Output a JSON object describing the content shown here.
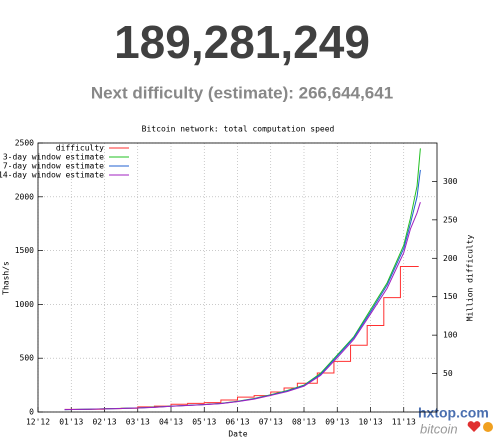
{
  "header": {
    "value": "189,281,249",
    "next": "Next difficulty (estimate): 266,644,641"
  },
  "chart_data": {
    "type": "line",
    "title": "Bitcoin network: total computation speed",
    "xlabel": "Date",
    "ylabel": "Thash/s",
    "y2label": "Million difficulty",
    "xlim": [
      0,
      12
    ],
    "xticks": [
      {
        "value": 0,
        "label": "12'12"
      },
      {
        "value": 1,
        "label": "01'13"
      },
      {
        "value": 2,
        "label": "02'13"
      },
      {
        "value": 3,
        "label": "03'13"
      },
      {
        "value": 4,
        "label": "04'13"
      },
      {
        "value": 5,
        "label": "05'13"
      },
      {
        "value": 6,
        "label": "06'13"
      },
      {
        "value": 7,
        "label": "07'13"
      },
      {
        "value": 8,
        "label": "08'13"
      },
      {
        "value": 9,
        "label": "09'13"
      },
      {
        "value": 10,
        "label": "10'13"
      },
      {
        "value": 11,
        "label": "11'13"
      }
    ],
    "ylim": [
      0,
      2500
    ],
    "yticks": [
      0,
      500,
      1000,
      1500,
      2000,
      2500
    ],
    "y2lim": [
      0,
      350
    ],
    "y2ticks": [
      50,
      100,
      150,
      200,
      250,
      300
    ],
    "grid": true,
    "legend": "top-left",
    "series": [
      {
        "name": "difficulty",
        "color": "#ff3030",
        "axis": "y2",
        "step": true,
        "x": [
          0.8,
          1.6,
          2.0,
          2.5,
          3.0,
          3.5,
          4.0,
          4.5,
          5.0,
          5.5,
          6.0,
          6.5,
          7.0,
          7.4,
          7.8,
          8.4,
          8.9,
          9.4,
          9.9,
          10.4,
          10.9,
          11.45
        ],
        "values": [
          3.4,
          3.6,
          4.4,
          4.9,
          6.7,
          7.7,
          10.1,
          11.2,
          12.2,
          15.6,
          19.3,
          21.3,
          26.0,
          31.3,
          37.4,
          50.8,
          65.8,
          86.9,
          112.6,
          148.8,
          189.3,
          189.3
        ]
      },
      {
        "name": "3-day window estimate",
        "color": "#20c020",
        "x": [
          0.8,
          1.5,
          2,
          2.5,
          3,
          3.5,
          4,
          4.5,
          5,
          5.5,
          6,
          6.5,
          7,
          7.5,
          8,
          8.5,
          9,
          9.5,
          10,
          10.5,
          11,
          11.2,
          11.4,
          11.5
        ],
        "values": [
          22,
          26,
          30,
          34,
          38,
          45,
          55,
          62,
          70,
          80,
          100,
          125,
          160,
          200,
          250,
          360,
          530,
          700,
          950,
          1200,
          1550,
          1800,
          2100,
          2450
        ]
      },
      {
        "name": "7-day window estimate",
        "color": "#2060d0",
        "x": [
          0.8,
          1.5,
          2,
          2.5,
          3,
          3.5,
          4,
          4.5,
          5,
          5.5,
          6,
          6.5,
          7,
          7.5,
          8,
          8.5,
          9,
          9.5,
          10,
          10.5,
          11,
          11.2,
          11.4,
          11.5
        ],
        "values": [
          22,
          25,
          29,
          33,
          37,
          44,
          54,
          61,
          69,
          79,
          98,
          123,
          157,
          195,
          245,
          350,
          520,
          690,
          930,
          1180,
          1520,
          1750,
          2000,
          2250
        ]
      },
      {
        "name": "14-day window estimate",
        "color": "#a020c0",
        "x": [
          0.8,
          1.5,
          2,
          2.5,
          3,
          3.5,
          4,
          4.5,
          5,
          5.5,
          6,
          6.5,
          7,
          7.5,
          8,
          8.5,
          9,
          9.5,
          10,
          10.5,
          11,
          11.2,
          11.4,
          11.5
        ],
        "values": [
          22,
          25,
          29,
          33,
          37,
          43,
          53,
          60,
          68,
          78,
          96,
          120,
          154,
          190,
          240,
          340,
          505,
          675,
          910,
          1150,
          1480,
          1700,
          1850,
          1950
        ]
      }
    ]
  },
  "watermark": {
    "site": "hxtop.com",
    "brand": "bitcoin"
  }
}
